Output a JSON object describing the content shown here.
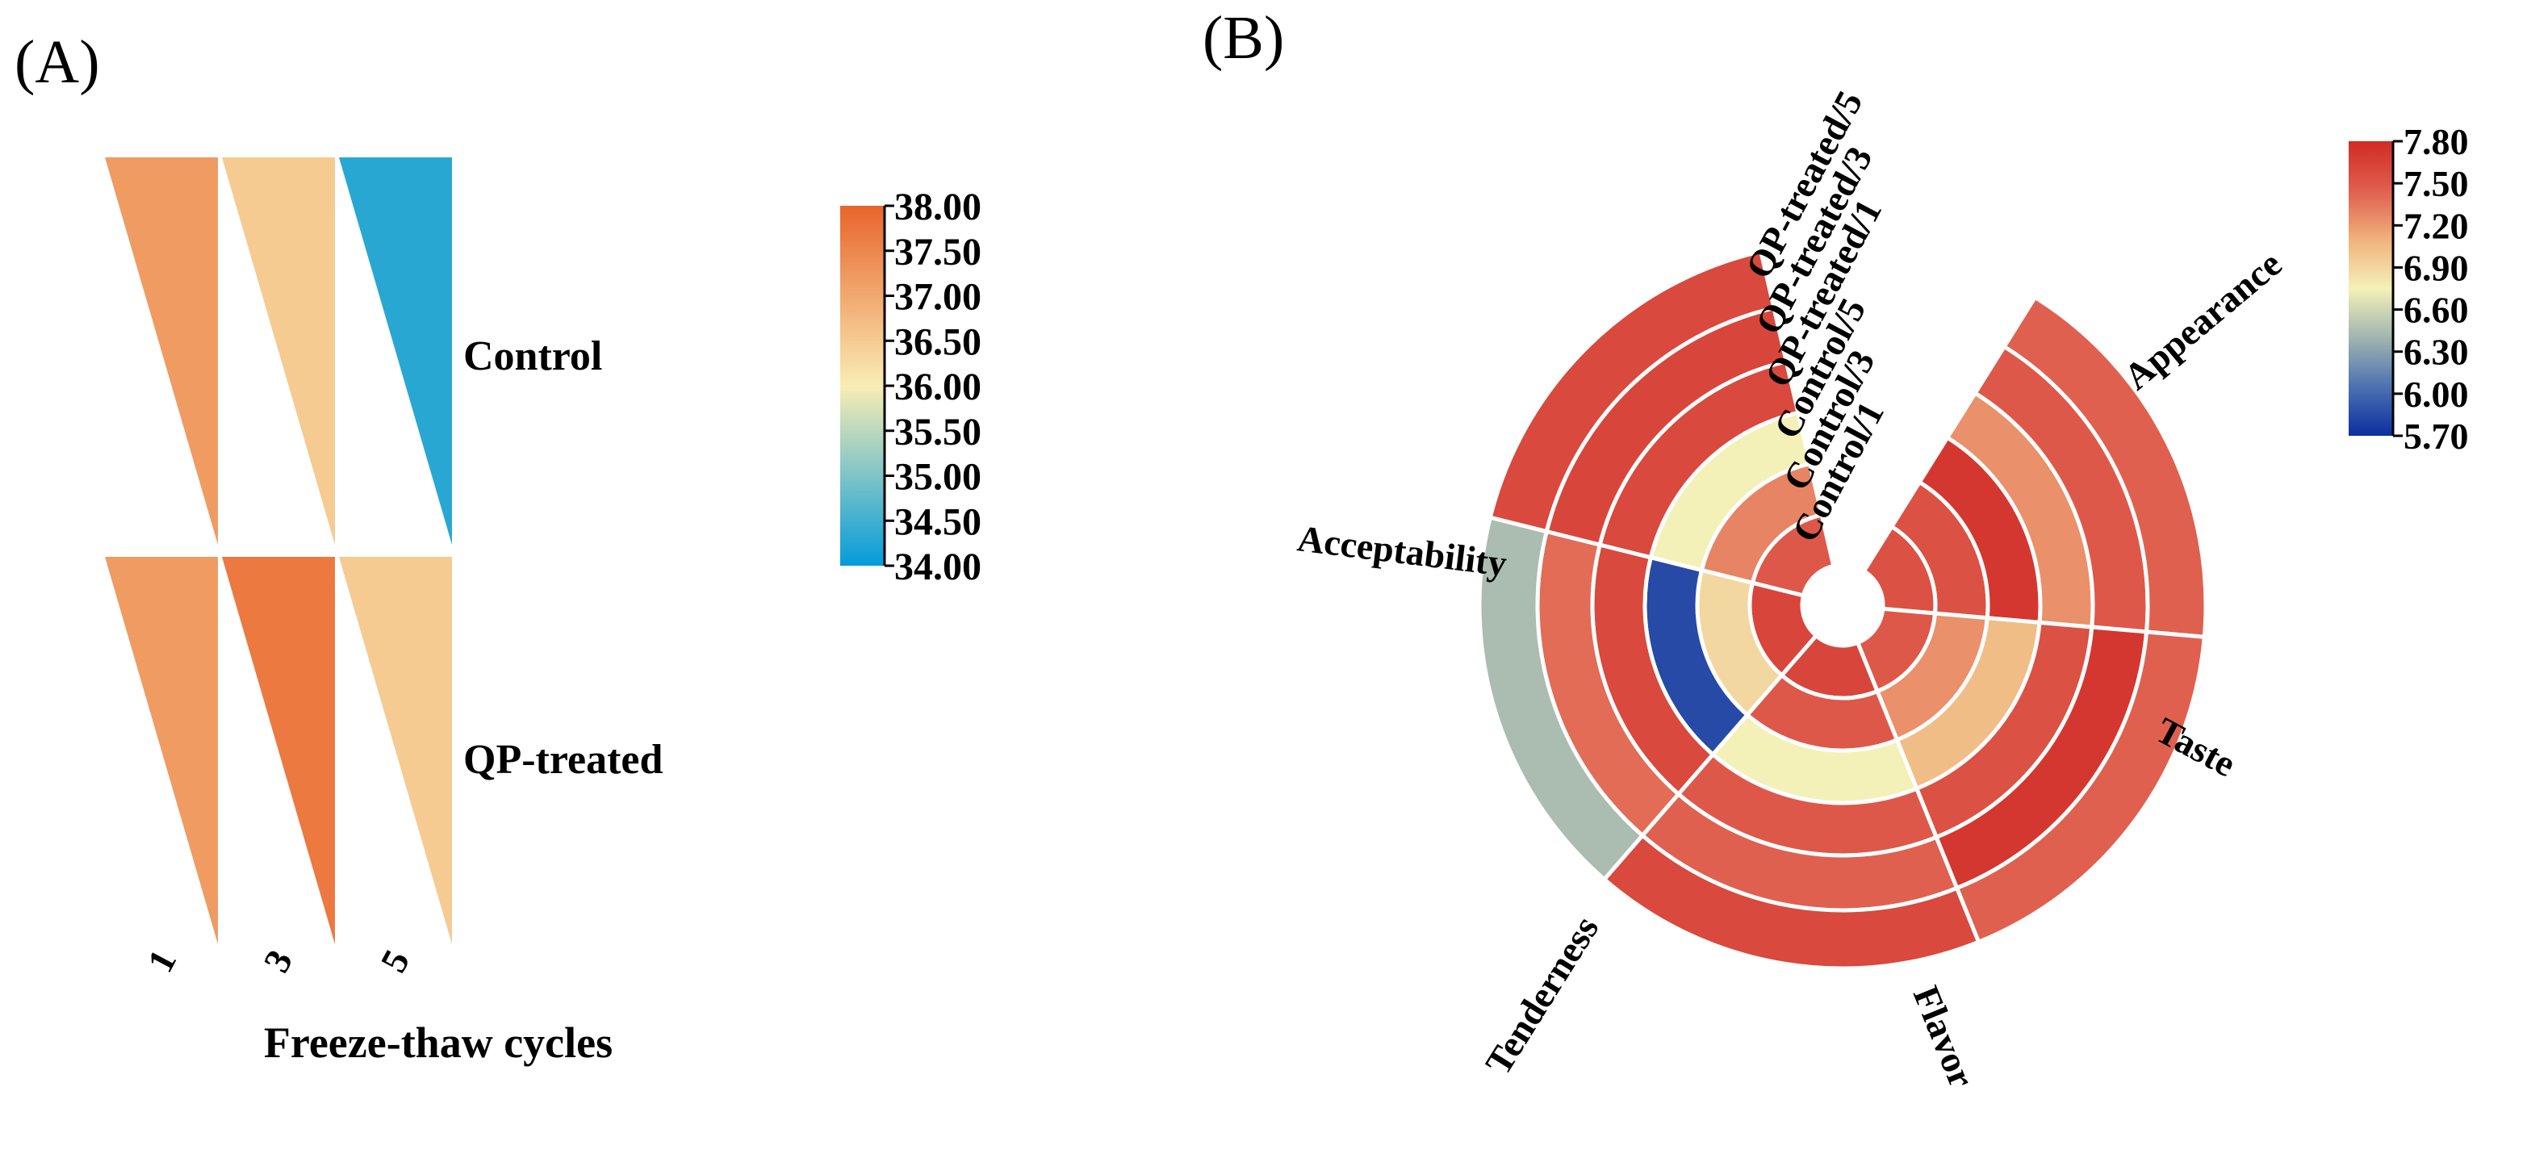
{
  "panel_a": {
    "label": "(A)",
    "chart_data": {
      "type": "heatmap",
      "title": "",
      "xlabel": "Freeze-thaw cycles",
      "categories": [
        "1",
        "3",
        "5"
      ],
      "series": [
        {
          "name": "Control",
          "values": [
            37.2,
            36.5,
            34.3
          ]
        },
        {
          "name": "QP-treated",
          "values": [
            37.2,
            37.7,
            36.5
          ]
        }
      ],
      "colorbar": {
        "min": 34.0,
        "max": 38.0,
        "ticks": [
          "38.00",
          "37.50",
          "37.00",
          "36.50",
          "36.00",
          "35.50",
          "35.00",
          "34.50",
          "34.00"
        ],
        "colors": [
          "#049bd9",
          "#f9edb4",
          "#e8642b"
        ]
      }
    }
  },
  "panel_b": {
    "label": "(B)",
    "chart_data": {
      "type": "heatmap",
      "subtype": "polar-heatmap",
      "title": "",
      "attributes": [
        "Appearance",
        "Taste",
        "Flavor",
        "Tenderness",
        "Acceptability"
      ],
      "rings": [
        "Control/1",
        "Control/3",
        "Control/5",
        "QP-treated/1",
        "QP-treated/3",
        "QP-treated/5"
      ],
      "values": {
        "Appearance": [
          7.55,
          7.55,
          7.72,
          7.25,
          7.5,
          7.45
        ],
        "Taste": [
          7.5,
          7.25,
          7.05,
          7.55,
          7.72,
          7.45
        ],
        "Flavor": [
          7.62,
          7.5,
          6.75,
          7.5,
          7.45,
          7.6
        ],
        "Tenderness": [
          7.62,
          6.9,
          5.85,
          7.6,
          7.4,
          6.45
        ],
        "Acceptability": [
          7.5,
          7.3,
          6.75,
          7.6,
          7.62,
          7.6
        ]
      },
      "colorbar": {
        "min": 5.7,
        "max": 7.8,
        "ticks": [
          "7.80",
          "7.50",
          "7.20",
          "6.90",
          "6.60",
          "6.30",
          "6.00",
          "5.70"
        ],
        "colors": [
          "#0b2f9e",
          "#4a6fb0",
          "#9fb3b0",
          "#f4f1b8",
          "#f1b47f",
          "#e0604f",
          "#d02b25"
        ]
      }
    }
  }
}
